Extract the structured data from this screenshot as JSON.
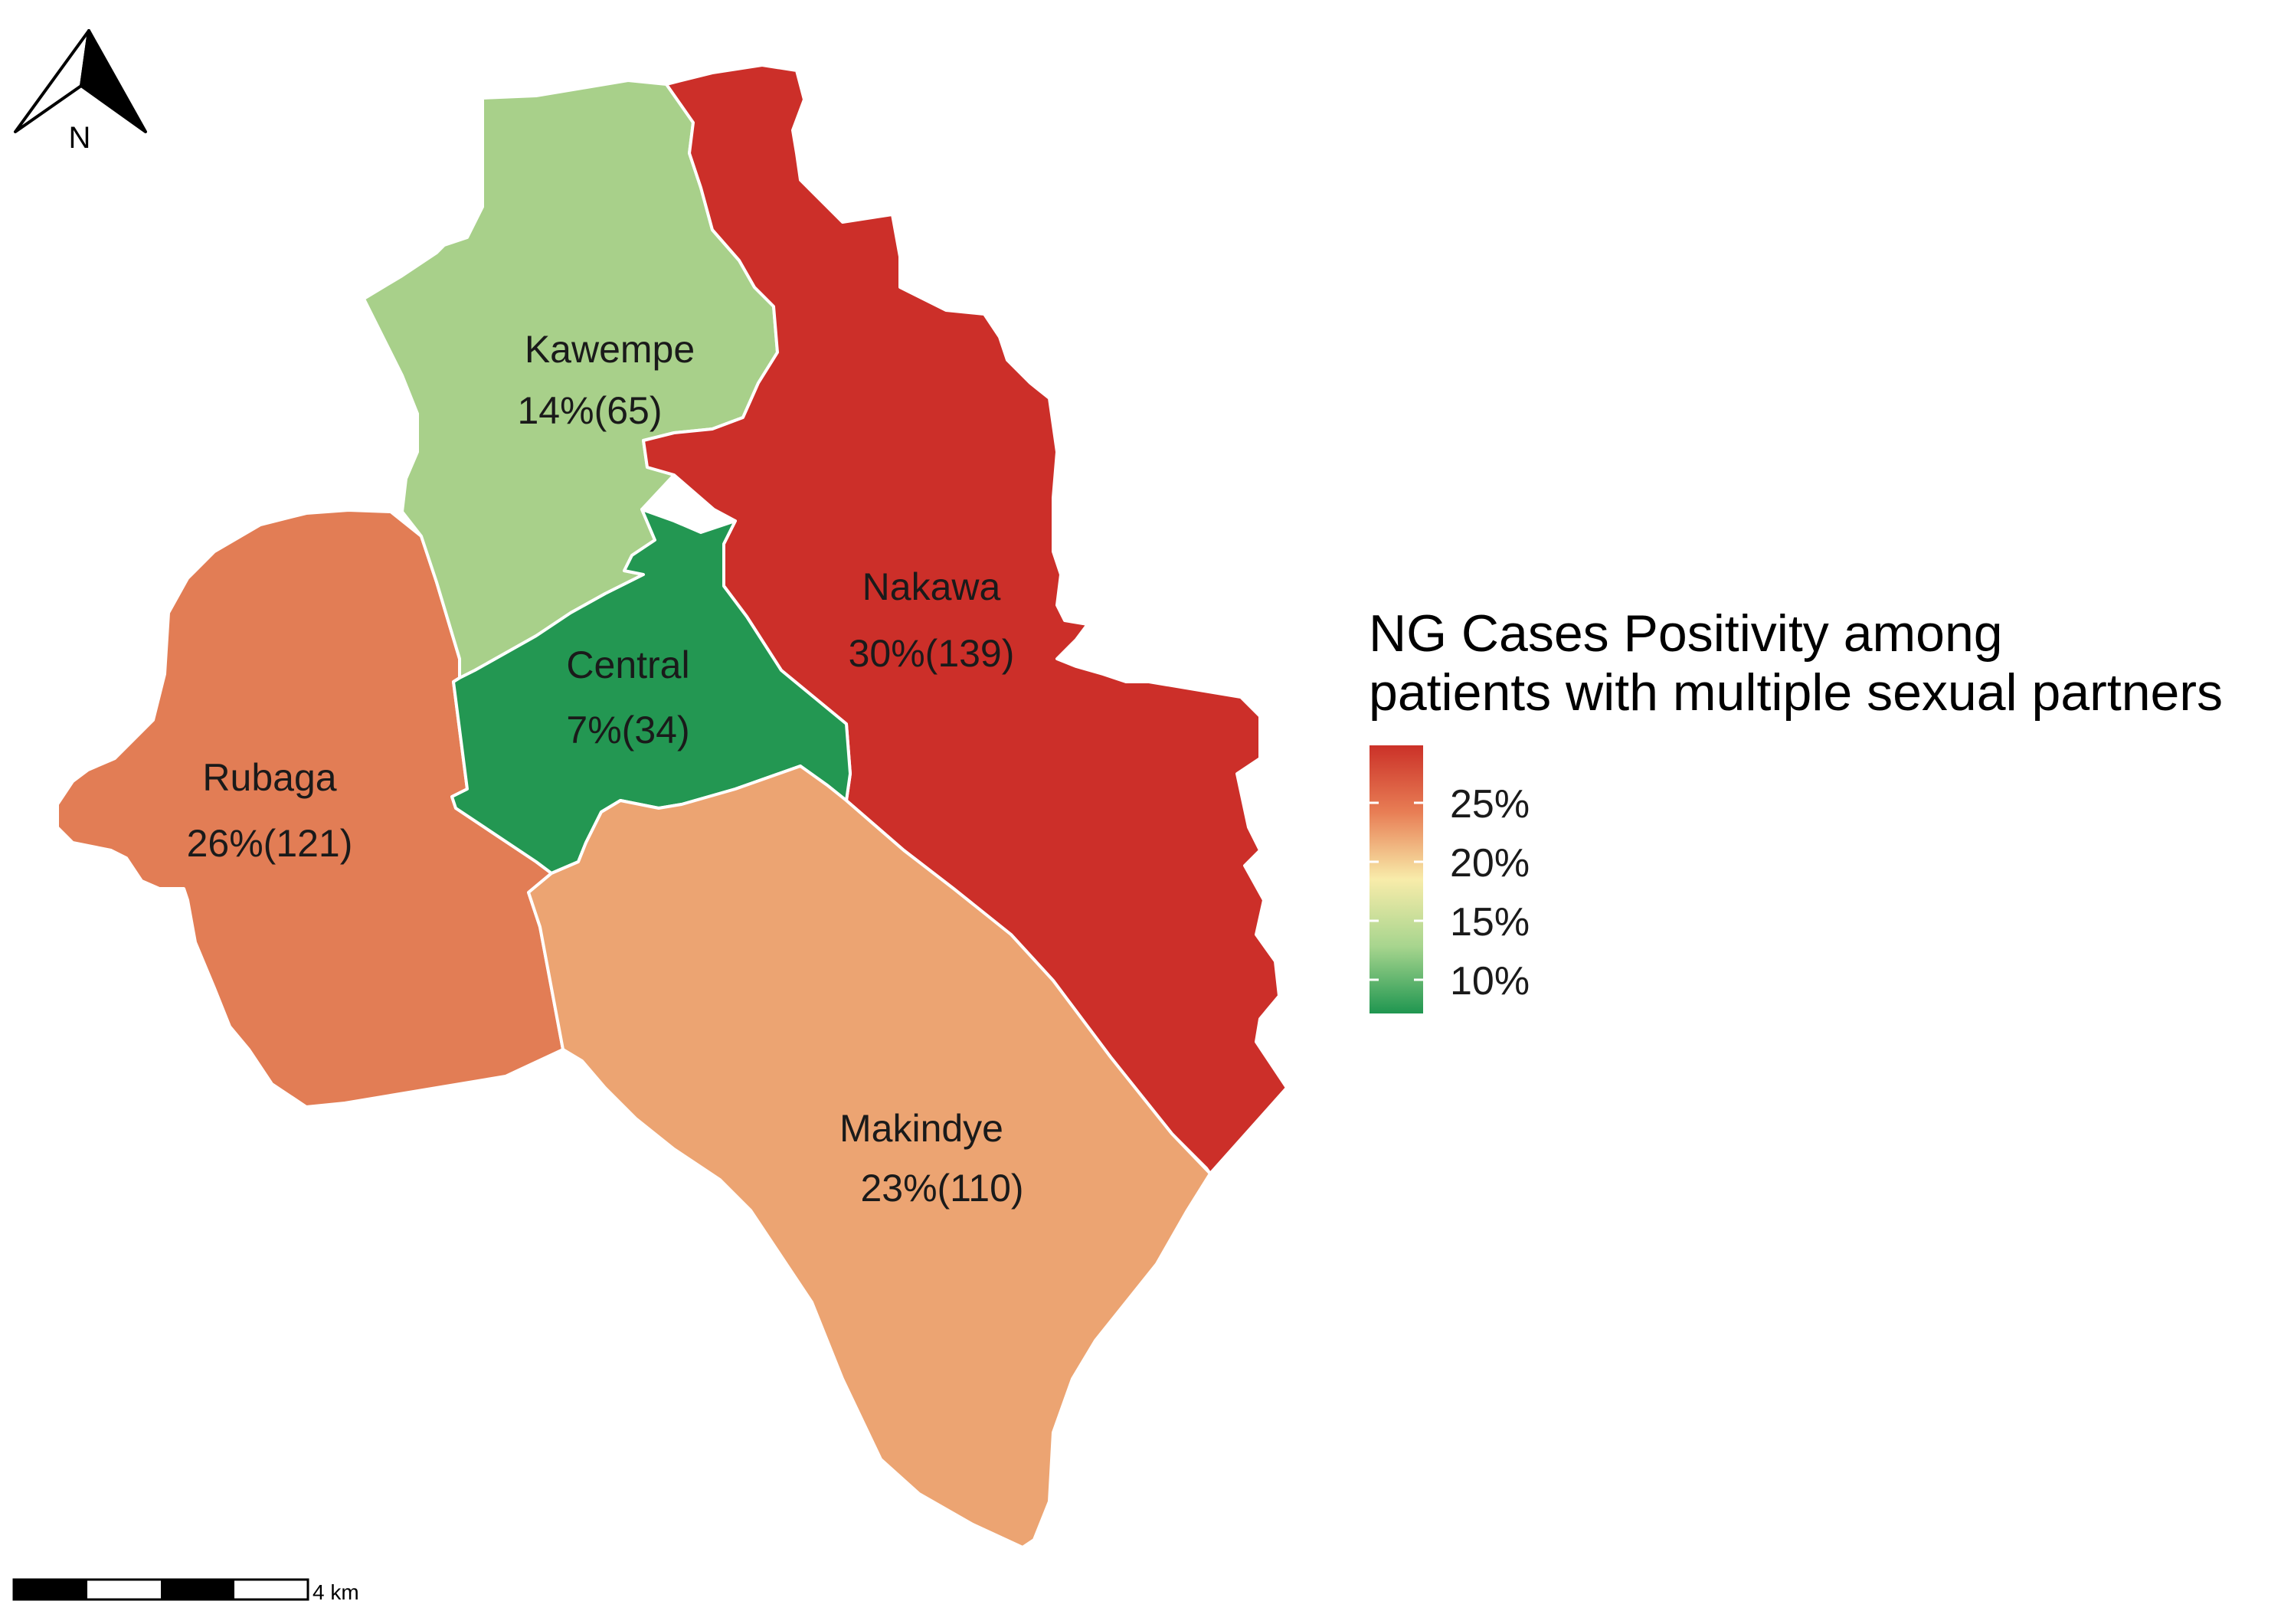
{
  "north_arrow": {
    "label": "N",
    "icon": "north-arrow-icon"
  },
  "scale_bar": {
    "label": "4 km"
  },
  "legend": {
    "title_line1": "NG Cases Positivity among",
    "title_line2": "patients with multiple sexual partners",
    "ticks": [
      "25%",
      "20%",
      "15%",
      "10%"
    ],
    "colors": {
      "high": "#cb3128",
      "upper_mid": "#e87e55",
      "mid": "#f8ecaa",
      "lower_mid": "#a7d58e",
      "low": "#1f9650"
    }
  },
  "districts": {
    "kawempe": {
      "name": "Kawempe",
      "value": "14%(65)",
      "color": "#a8d08a"
    },
    "nakawa": {
      "name": "Nakawa",
      "value": "30%(139)",
      "color": "#cc2f29"
    },
    "central": {
      "name": "Central",
      "value": "7%(34)",
      "color": "#239752"
    },
    "rubaga": {
      "name": "Rubaga",
      "value": "26%(121)",
      "color": "#e27d55"
    },
    "makindye": {
      "name": "Makindye",
      "value": "23%(110)",
      "color": "#eca472"
    }
  }
}
